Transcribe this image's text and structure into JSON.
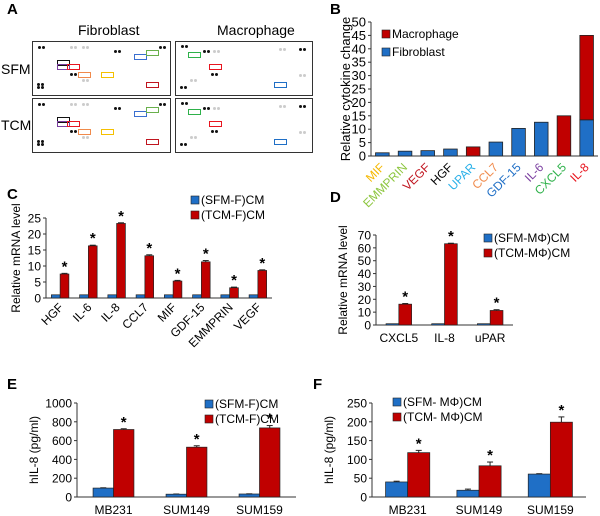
{
  "panels": {
    "A": {
      "label": "A",
      "columns": [
        "Fibroblast",
        "Macrophage"
      ],
      "rows": [
        "SFM",
        "TCM"
      ]
    },
    "B": {
      "label": "B"
    },
    "C": {
      "label": "C"
    },
    "D": {
      "label": "D"
    },
    "E": {
      "label": "E"
    },
    "F": {
      "label": "F"
    }
  },
  "colors": {
    "blue": "#1f6fc6",
    "red": "#c00000",
    "axis": "#333333"
  },
  "chart_data": [
    {
      "id": "B",
      "type": "bar",
      "stacked": true,
      "ylabel": "Relative cytokine change",
      "ylim": [
        0,
        50
      ],
      "yticks": [
        0,
        5,
        10,
        15,
        20,
        25,
        30,
        35,
        40,
        45,
        50
      ],
      "categories": [
        "MIF",
        "EMMPRIN",
        "VEGF",
        "HGF",
        "UPAR",
        "CCL7",
        "GDF-15",
        "IL-6",
        "CXCL5",
        "IL-8"
      ],
      "category_colors": [
        "#f5b800",
        "#8dc63f",
        "#c0151f",
        "#000000",
        "#2ab0e8",
        "#f08a4b",
        "#1f6fc6",
        "#7b3fa0",
        "#2eb14a",
        "#e8151f"
      ],
      "series": [
        {
          "name": "Fibroblast",
          "color": "#1f6fc6",
          "values": [
            1.2,
            1.8,
            2.0,
            2.6,
            0,
            5.2,
            10.3,
            12.6,
            0,
            13.5
          ]
        },
        {
          "name": "Macrophage",
          "color": "#c00000",
          "values": [
            0,
            0,
            0,
            0,
            3.4,
            0,
            0,
            0,
            15.0,
            31.5
          ]
        }
      ],
      "legend": [
        "Macrophage",
        "Fibroblast"
      ],
      "legend_position": "top-left"
    },
    {
      "id": "C",
      "type": "bar",
      "ylabel": "Relative mRNA level",
      "ylim": [
        0,
        25
      ],
      "yticks": [
        0,
        5,
        10,
        15,
        20,
        25
      ],
      "categories": [
        "HGF",
        "IL-6",
        "IL-8",
        "CCL7",
        "MIF",
        "GDF-15",
        "EMMPRIN",
        "VEGF"
      ],
      "series": [
        {
          "name": "(SFM-F)CM",
          "color": "#1f6fc6",
          "values": [
            1,
            1,
            1,
            1,
            1,
            1,
            1,
            1
          ],
          "errors": [
            0,
            0,
            0,
            0,
            0,
            0,
            0,
            0
          ]
        },
        {
          "name": "(TCM-F)CM",
          "color": "#c00000",
          "values": [
            7.5,
            16.3,
            23.3,
            13.2,
            5.3,
            11.3,
            3.2,
            8.6
          ],
          "errors": [
            0.2,
            0.2,
            0.2,
            0.3,
            0.2,
            0.4,
            0.2,
            0.2
          ]
        }
      ],
      "significance": [
        "*",
        "*",
        "*",
        "*",
        "*",
        "*",
        "*",
        "*"
      ],
      "legend_position": "top-right"
    },
    {
      "id": "D",
      "type": "bar",
      "ylabel": "Relative mRNA level",
      "ylim": [
        0,
        70
      ],
      "yticks": [
        0,
        10,
        20,
        30,
        40,
        50,
        60,
        70
      ],
      "categories": [
        "CXCL5",
        "IL-8",
        "uPAR"
      ],
      "series": [
        {
          "name": "(SFM-MΦ)CM",
          "color": "#1f6fc6",
          "values": [
            1,
            1,
            1
          ],
          "errors": [
            0,
            0,
            0
          ]
        },
        {
          "name": "(TCM-MΦ)CM",
          "color": "#c00000",
          "values": [
            16.2,
            63.2,
            11.3
          ],
          "errors": [
            0.5,
            0.4,
            0.6
          ]
        }
      ],
      "significance": [
        "*",
        "*",
        "*"
      ],
      "legend_position": "top-right"
    },
    {
      "id": "E",
      "type": "bar",
      "ylabel": "hIL-8 (pg/ml)",
      "ylim": [
        0,
        1000
      ],
      "yticks": [
        0,
        200,
        400,
        600,
        800,
        1000
      ],
      "categories": [
        "MB231",
        "SUM149",
        "SUM159"
      ],
      "series": [
        {
          "name": "(SFM-F)CM",
          "color": "#1f6fc6",
          "values": [
            95,
            30,
            32
          ],
          "errors": [
            3,
            2,
            2
          ]
        },
        {
          "name": "(TCM-F)CM",
          "color": "#c00000",
          "values": [
            718,
            530,
            735
          ],
          "errors": [
            8,
            15,
            25
          ]
        }
      ],
      "significance": [
        "*",
        "*",
        "*"
      ],
      "legend_position": "top-right"
    },
    {
      "id": "F",
      "type": "bar",
      "ylabel": "hIL-8 (pg/ml)",
      "ylim": [
        0,
        250
      ],
      "yticks": [
        0,
        50,
        100,
        150,
        200,
        250
      ],
      "categories": [
        "MB231",
        "SUM149",
        "SUM159"
      ],
      "series": [
        {
          "name": "(SFM- MΦ)CM",
          "color": "#1f6fc6",
          "values": [
            40,
            18,
            61
          ],
          "errors": [
            2,
            3,
            1
          ]
        },
        {
          "name": "(TCM- MΦ)CM",
          "color": "#c00000",
          "values": [
            118,
            83,
            199
          ],
          "errors": [
            6,
            10,
            14
          ]
        }
      ],
      "significance": [
        "*",
        "*",
        "*"
      ],
      "legend_position": "top-left"
    }
  ]
}
